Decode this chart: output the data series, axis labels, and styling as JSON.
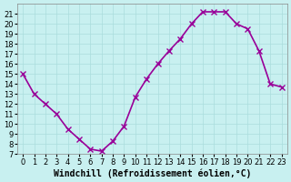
{
  "x": [
    0,
    1,
    2,
    3,
    4,
    5,
    6,
    7,
    8,
    9,
    10,
    11,
    12,
    13,
    14,
    15,
    16,
    17,
    18,
    19,
    20,
    21,
    22,
    23
  ],
  "y": [
    15,
    13,
    12,
    11,
    9.5,
    8.5,
    7.5,
    7.3,
    8.3,
    9.8,
    12.7,
    14.5,
    16,
    17.3,
    18.5,
    20,
    21.2,
    21.2,
    21.2,
    20,
    19.5,
    17.3,
    14,
    13.7
  ],
  "line_color": "#990099",
  "bg_color": "#c8f0f0",
  "grid_color": "#aadddd",
  "xlabel": "Windchill (Refroidissement éolien,°C)",
  "xlim": [
    -0.5,
    23.5
  ],
  "ylim": [
    7,
    22
  ],
  "yticks": [
    7,
    8,
    9,
    10,
    11,
    12,
    13,
    14,
    15,
    16,
    17,
    18,
    19,
    20,
    21
  ],
  "xticks": [
    0,
    1,
    2,
    3,
    4,
    5,
    6,
    7,
    8,
    9,
    10,
    11,
    12,
    13,
    14,
    15,
    16,
    17,
    18,
    19,
    20,
    21,
    22,
    23
  ],
  "marker": "x",
  "markersize": 4,
  "linewidth": 1.2,
  "tick_fontsize": 6,
  "xlabel_fontsize": 7
}
